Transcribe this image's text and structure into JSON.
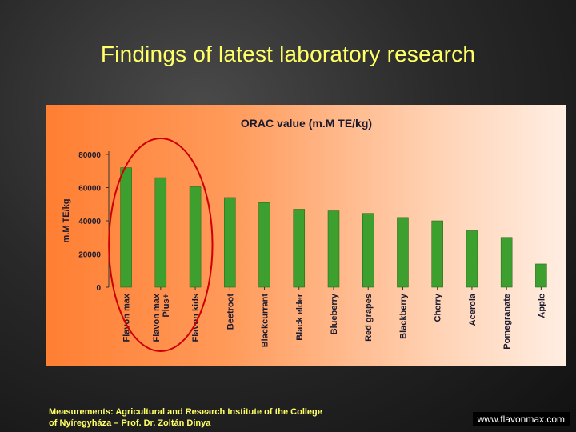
{
  "slide": {
    "title": "Findings of latest laboratory research",
    "footer_note_line1": "Measurements: Agricultural and Research Institute of the College",
    "footer_note_line2": "of Nyíregyháza – Prof. Dr. Zoltán Dinya",
    "url": "www.flavonmax.com"
  },
  "chart_data": {
    "type": "bar",
    "title": "ORAC value (m.M TE/kg)",
    "xlabel": "",
    "ylabel": "m.M TE/kg",
    "ylim": [
      0,
      80000
    ],
    "yticks": [
      "80000",
      "60000",
      "40000",
      "20000",
      "0"
    ],
    "categories": [
      "Flavon max",
      "Flavon max Plus+",
      "Flavon kids",
      "Beetroot",
      "Blackcurrant",
      "Black elder",
      "Blueberry",
      "Red grapes",
      "Blackberry",
      "Cherry",
      "Acerola",
      "Pomegranate",
      "Apple"
    ],
    "values": [
      72000,
      66000,
      60500,
      54000,
      51000,
      47000,
      46000,
      44500,
      42000,
      40000,
      34000,
      30000,
      14000
    ],
    "bar_color": "#3da02e",
    "grid": false,
    "legend": "none",
    "annotation": "red ellipse highlighting Flavon products"
  }
}
